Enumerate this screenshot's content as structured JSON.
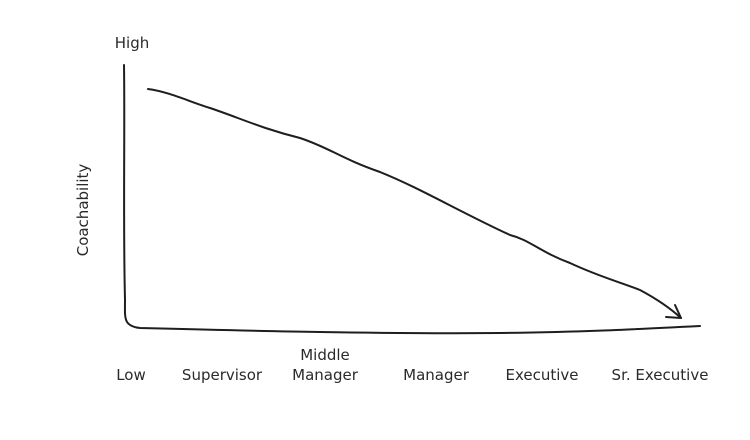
{
  "y_axis": {
    "label": "Coachability",
    "high": "High"
  },
  "x_labels": [
    [
      "Low"
    ],
    [
      "Supervisor"
    ],
    [
      "Middle",
      "Manager"
    ],
    [
      "Manager"
    ],
    [
      "Executive"
    ],
    [
      "Sr. Executive"
    ]
  ]
}
